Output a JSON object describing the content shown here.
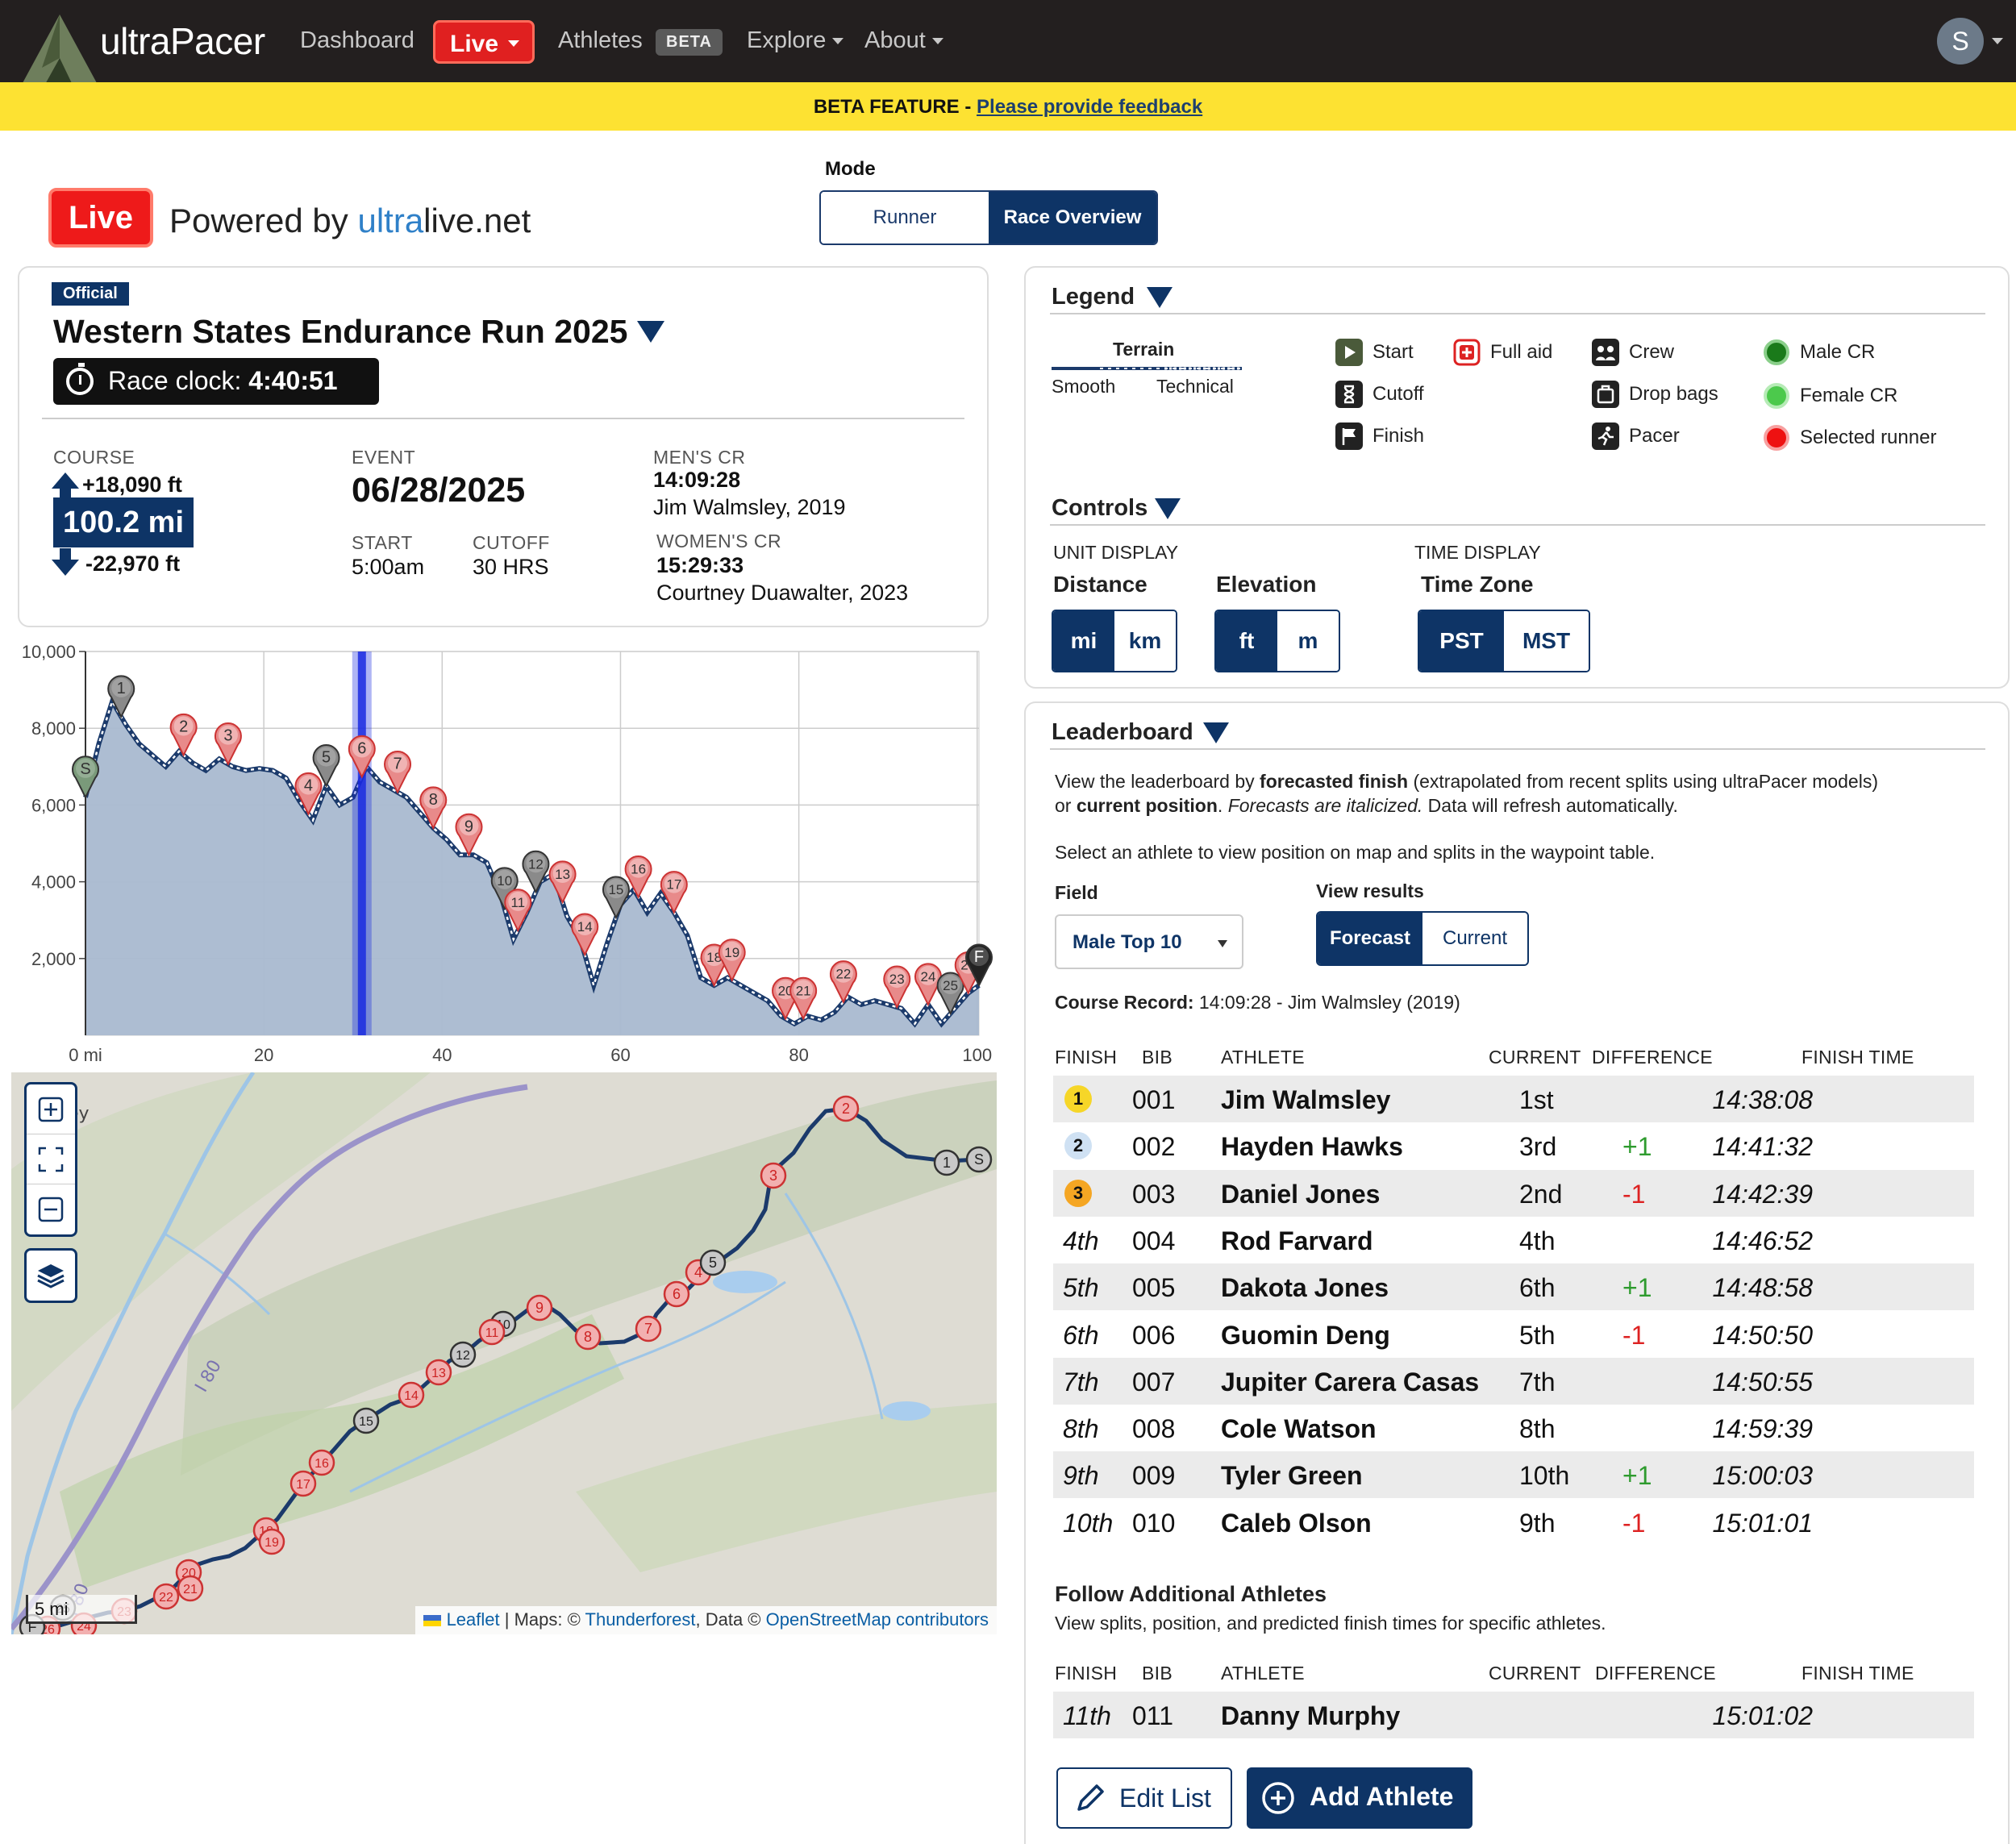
{
  "nav": {
    "brand": "ultraPacer",
    "items": [
      "Dashboard",
      "Live",
      "Athletes",
      "Explore",
      "About"
    ],
    "beta_pill": "BETA",
    "avatar_initial": "S"
  },
  "banner": {
    "label": "BETA FEATURE",
    "sep": " - ",
    "link": "Please provide feedback"
  },
  "header": {
    "live_badge": "Live",
    "powered_prefix": "Powered by ",
    "powered_u1": "ultra",
    "powered_u2": "live.net",
    "mode_label": "Mode",
    "mode_options": [
      "Runner",
      "Race Overview"
    ],
    "mode_selected": "Race Overview"
  },
  "race": {
    "badge": "Official",
    "title": "Western States Endurance Run 2025",
    "clock_label": "Race clock: ",
    "clock_value": "4:40:51",
    "course_label": "COURSE",
    "gain": "+18,090 ft",
    "distance": "100.2 mi",
    "loss": "-22,970 ft",
    "event_label": "EVENT",
    "event_date": "06/28/2025",
    "start_label": "START",
    "start_value": "5:00am",
    "cutoff_label": "CUTOFF",
    "cutoff_value": "30 HRS",
    "mens_cr_label": "MEN'S CR",
    "mens_cr_time": "14:09:28",
    "mens_cr_holder": "Jim Walmsley, 2019",
    "womens_cr_label": "WOMEN'S CR",
    "womens_cr_time": "15:29:33",
    "womens_cr_holder": "Courtney Duawalter, 2023"
  },
  "chart_data": {
    "type": "area",
    "title": "",
    "xlabel": "",
    "ylabel": "",
    "xlim": [
      0,
      100.2
    ],
    "ylim": [
      0,
      10000
    ],
    "x_ticks": [
      0,
      20,
      40,
      60,
      80,
      100
    ],
    "x_tick_labels": [
      "0 mi",
      "20",
      "40",
      "60",
      "80",
      "100"
    ],
    "y_ticks": [
      2000,
      4000,
      6000,
      8000,
      10000
    ],
    "y_tick_labels": [
      "2,000",
      "4,000",
      "6,000",
      "8,000",
      "10,000"
    ],
    "grid": true,
    "colors": {
      "fill": "#a9b9d0",
      "line": "#1b3a6b",
      "runner_band": "#1a2ae0",
      "aid": "#e88a8a",
      "crew": "#8a8a8a",
      "start": "#7a9a7a"
    },
    "runner_position_mi": 31,
    "series": [
      {
        "values_x": [
          0,
          1.5,
          3,
          4.5,
          6,
          7.5,
          9,
          10.5,
          12,
          13.5,
          15,
          16.5,
          18,
          19.5,
          21,
          22.5,
          24,
          25.5,
          27,
          28.5,
          30,
          31.5,
          33,
          34.5,
          36,
          37.5,
          39,
          40.5,
          42,
          43.5,
          45,
          46.5,
          48,
          49.5,
          51,
          52.5,
          54,
          55.5,
          57,
          58.5,
          60,
          61.5,
          63,
          64.5,
          66,
          67.5,
          69,
          70.5,
          72,
          73.5,
          75,
          76.5,
          78,
          79.5,
          81,
          82.5,
          84,
          85.5,
          87,
          88.5,
          90,
          91.5,
          93,
          94.5,
          96,
          97.5,
          99,
          100.2
        ],
        "values_y": [
          6200,
          7600,
          8700,
          8100,
          7600,
          7300,
          7000,
          7400,
          7100,
          6900,
          7200,
          7000,
          6900,
          6950,
          6900,
          6700,
          6100,
          5600,
          6500,
          6000,
          6200,
          7000,
          6600,
          6400,
          6200,
          5800,
          5400,
          5100,
          4700,
          4700,
          4500,
          3700,
          2500,
          3200,
          4000,
          4200,
          3100,
          2500,
          1300,
          2400,
          3400,
          3800,
          3200,
          3700,
          3200,
          2600,
          1500,
          1300,
          1500,
          1300,
          1100,
          900,
          500,
          300,
          500,
          400,
          600,
          1000,
          800,
          900,
          800,
          700,
          300,
          800,
          300,
          700,
          1100,
          1300
        ]
      }
    ],
    "waypoints": [
      {
        "label": "S",
        "x": 0,
        "kind": "start"
      },
      {
        "label": "1",
        "x": 4,
        "kind": "crew"
      },
      {
        "label": "2",
        "x": 11,
        "kind": "aid"
      },
      {
        "label": "3",
        "x": 16,
        "kind": "aid"
      },
      {
        "label": "4",
        "x": 25,
        "kind": "aid"
      },
      {
        "label": "5",
        "x": 27,
        "kind": "crew"
      },
      {
        "label": "6",
        "x": 31,
        "kind": "aid"
      },
      {
        "label": "7",
        "x": 35,
        "kind": "aid"
      },
      {
        "label": "8",
        "x": 39,
        "kind": "aid"
      },
      {
        "label": "9",
        "x": 43,
        "kind": "aid"
      },
      {
        "label": "10",
        "x": 47,
        "kind": "crew"
      },
      {
        "label": "11",
        "x": 48.5,
        "kind": "aid"
      },
      {
        "label": "12",
        "x": 50.5,
        "kind": "crew"
      },
      {
        "label": "13",
        "x": 53.5,
        "kind": "aid"
      },
      {
        "label": "14",
        "x": 56,
        "kind": "aid"
      },
      {
        "label": "15",
        "x": 59.5,
        "kind": "crew"
      },
      {
        "label": "16",
        "x": 62,
        "kind": "aid"
      },
      {
        "label": "17",
        "x": 66,
        "kind": "aid"
      },
      {
        "label": "18",
        "x": 70.5,
        "kind": "aid"
      },
      {
        "label": "19",
        "x": 72.5,
        "kind": "aid"
      },
      {
        "label": "20",
        "x": 78.5,
        "kind": "aid"
      },
      {
        "label": "21",
        "x": 80.5,
        "kind": "aid"
      },
      {
        "label": "22",
        "x": 85,
        "kind": "aid"
      },
      {
        "label": "23",
        "x": 91,
        "kind": "aid"
      },
      {
        "label": "24",
        "x": 94.5,
        "kind": "aid"
      },
      {
        "label": "25",
        "x": 97,
        "kind": "crew"
      },
      {
        "label": "26",
        "x": 99,
        "kind": "aid"
      },
      {
        "label": "F",
        "x": 100.2,
        "kind": "finish"
      }
    ]
  },
  "map": {
    "scale_label": "5 mi",
    "attribution": {
      "leaflet": "Leaflet",
      "sep1": " | Maps: © ",
      "tf": "Thunderforest",
      "sep2": ", Data © ",
      "osm": "OpenStreetMap contributors"
    },
    "road_labels": [
      "I 80",
      "I 80"
    ],
    "place_fragment": "ey"
  },
  "legend": {
    "title": "Legend",
    "terrain_label": "Terrain",
    "terrain_smooth": "Smooth",
    "terrain_technical": "Technical",
    "items": [
      "Start",
      "Full aid",
      "Crew",
      "Male CR",
      "Cutoff",
      "Drop bags",
      "Female CR",
      "Finish",
      "Pacer",
      "Selected runner"
    ]
  },
  "controls": {
    "title": "Controls",
    "unit_display": "UNIT DISPLAY",
    "time_display": "TIME DISPLAY",
    "distance_label": "Distance",
    "distance_options": [
      "mi",
      "km"
    ],
    "elevation_label": "Elevation",
    "elevation_options": [
      "ft",
      "m"
    ],
    "timezone_label": "Time Zone",
    "timezone_options": [
      "PST",
      "MST"
    ]
  },
  "leaderboard": {
    "title": "Leaderboard",
    "intro_1a": "View the leaderboard by ",
    "intro_1b": "forecasted finish",
    "intro_1c": " (extrapolated from recent splits using ultraPacer models)",
    "intro_2a": "or ",
    "intro_2b": "current position",
    "intro_2c": ".  ",
    "intro_2d": "Forecasts are italicized.",
    "intro_2e": "  Data will refresh automatically.",
    "intro_3": "Select an athlete to view position on map and splits in the waypoint table.",
    "field_label": "Field",
    "field_value": "Male Top 10",
    "view_label": "View results",
    "view_options": [
      "Forecast",
      "Current"
    ],
    "cr_label": "Course Record:",
    "cr_value": " 14:09:28 - Jim Walmsley (2019)",
    "columns": [
      "FINISH",
      "BIB",
      "ATHLETE",
      "CURRENT",
      "DIFFERENCE",
      "FINISH TIME"
    ],
    "rows": [
      {
        "finish": "1",
        "bib": "001",
        "athlete": "Jim Walmsley",
        "current": "1st",
        "diff": "",
        "time": "14:38:08"
      },
      {
        "finish": "2",
        "bib": "002",
        "athlete": "Hayden Hawks",
        "current": "3rd",
        "diff": "+1",
        "time": "14:41:32"
      },
      {
        "finish": "3",
        "bib": "003",
        "athlete": "Daniel Jones",
        "current": "2nd",
        "diff": "-1",
        "time": "14:42:39"
      },
      {
        "finish": "4th",
        "bib": "004",
        "athlete": "Rod Farvard",
        "current": "4th",
        "diff": "",
        "time": "14:46:52"
      },
      {
        "finish": "5th",
        "bib": "005",
        "athlete": "Dakota Jones",
        "current": "6th",
        "diff": "+1",
        "time": "14:48:58"
      },
      {
        "finish": "6th",
        "bib": "006",
        "athlete": "Guomin Deng",
        "current": "5th",
        "diff": "-1",
        "time": "14:50:50"
      },
      {
        "finish": "7th",
        "bib": "007",
        "athlete": "Jupiter Carera Casas",
        "current": "7th",
        "diff": "",
        "time": "14:50:55"
      },
      {
        "finish": "8th",
        "bib": "008",
        "athlete": "Cole Watson",
        "current": "8th",
        "diff": "",
        "time": "14:59:39"
      },
      {
        "finish": "9th",
        "bib": "009",
        "athlete": "Tyler Green",
        "current": "10th",
        "diff": "+1",
        "time": "15:00:03"
      },
      {
        "finish": "10th",
        "bib": "010",
        "athlete": "Caleb Olson",
        "current": "9th",
        "diff": "-1",
        "time": "15:01:01"
      }
    ],
    "follow_title": "Follow Additional Athletes",
    "follow_desc": "View splits, position, and predicted finish times for specific athletes.",
    "follow_rows": [
      {
        "finish": "11th",
        "bib": "011",
        "athlete": "Danny Murphy",
        "current": "",
        "diff": "",
        "time": "15:01:02"
      }
    ],
    "edit_label": "Edit List",
    "add_label": "Add Athlete"
  }
}
